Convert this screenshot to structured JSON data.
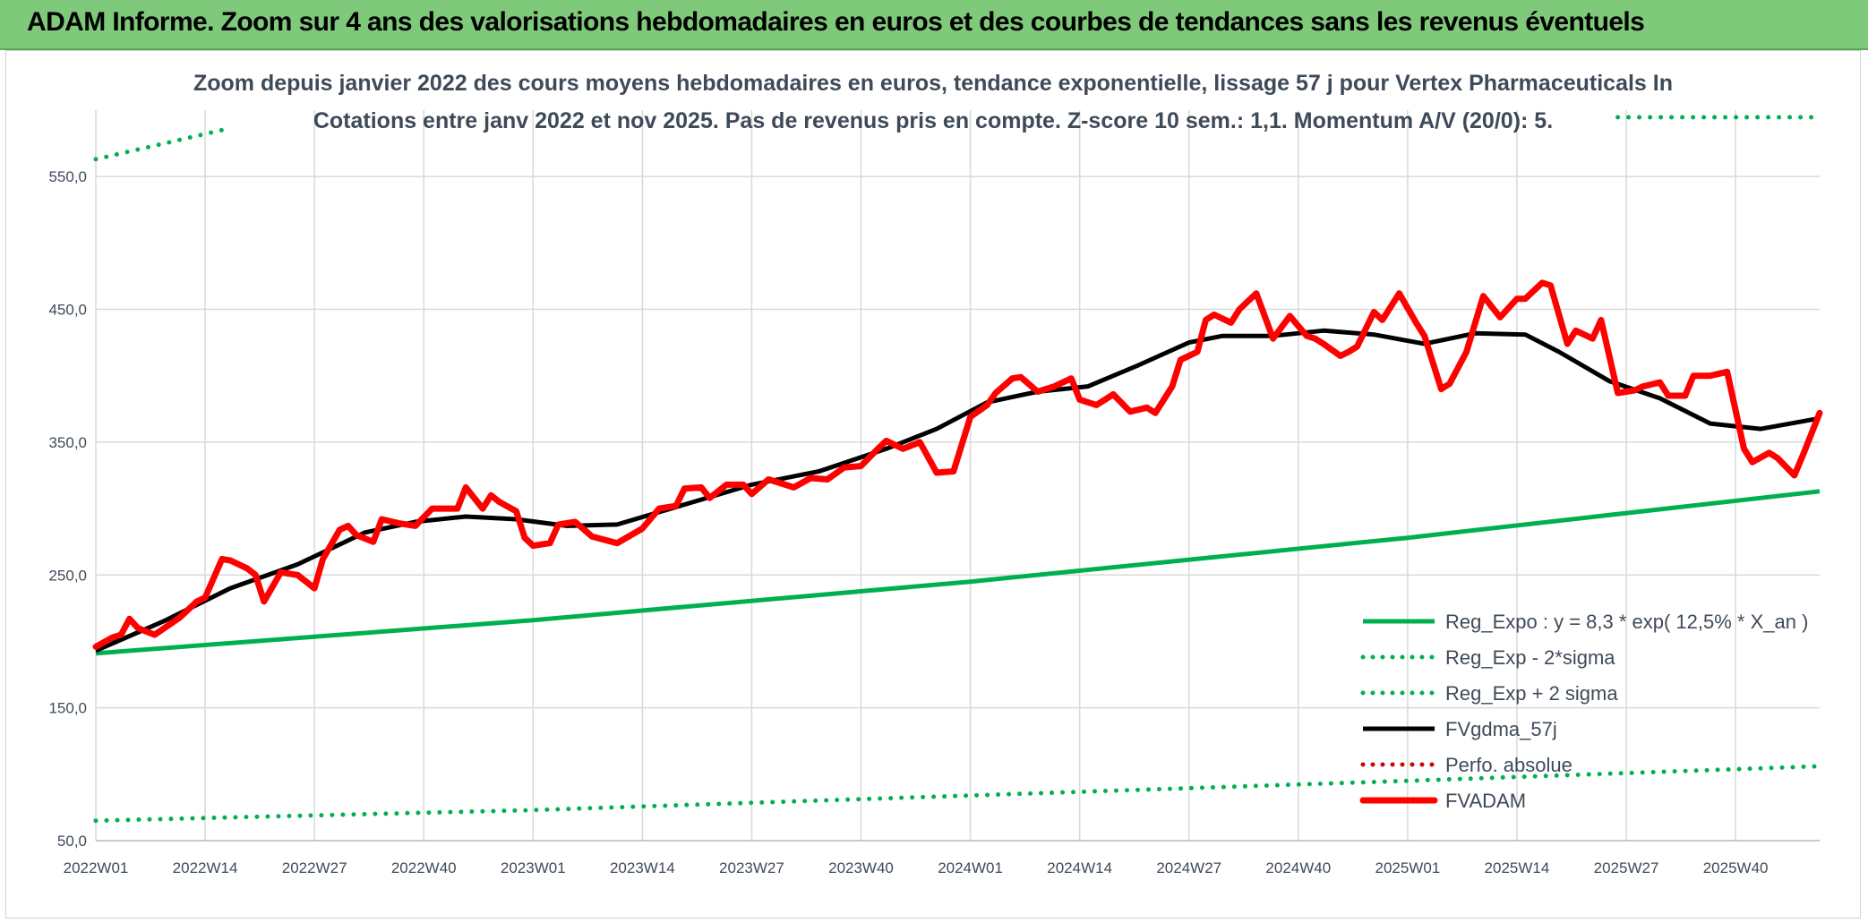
{
  "header": {
    "title": "ADAM Informe. Zoom sur 4 ans des valorisations hebdomadaires en euros et des courbes de tendances sans les revenus éventuels"
  },
  "colors": {
    "header_bg": "#7fc97a",
    "regression": "#00b050",
    "fvgdma": "#000000",
    "perfo": "#d00000",
    "fvadam": "#ff0000",
    "grid": "#d9d9d9"
  },
  "chart_data": {
    "type": "line",
    "title": "Zoom depuis janvier 2022 des cours moyens hebdomadaires en euros, tendance exponentielle, lissage 57 j pour Vertex Pharmaceuticals In",
    "subtitle": "Cotations entre janv 2022 et nov 2025. Pas de revenus pris en compte. Z-score 10 sem.: 1,1. Momentum A/V (20/0): 5.",
    "xlabel": "",
    "ylabel": "",
    "ylim": [
      50,
      600
    ],
    "yticks": [
      "550,0",
      "450,0",
      "350,0",
      "250,0",
      "150,0",
      "50,0"
    ],
    "ytick_values": [
      550,
      450,
      350,
      250,
      150,
      50
    ],
    "x_tick_labels": [
      "2022W01",
      "2022W14",
      "2022W27",
      "2022W40",
      "2023W01",
      "2023W14",
      "2023W27",
      "2023W40",
      "2024W01",
      "2024W14",
      "2024W27",
      "2024W40",
      "2025W01",
      "2025W14",
      "2025W27",
      "2025W40"
    ],
    "x_tick_index": [
      0,
      13,
      26,
      39,
      52,
      65,
      78,
      91,
      104,
      117,
      130,
      143,
      156,
      169,
      182,
      195
    ],
    "n_weeks": 206,
    "grid": true,
    "legend_position": "bottom-right",
    "series": [
      {
        "name": "Reg_Expo : y = 8,3 * exp( 12,5% *  X_an )",
        "style": "solid",
        "color": "#00b050",
        "x": [
          0,
          52,
          104,
          156,
          205
        ],
        "values": [
          191,
          216,
          245,
          278,
          313
        ]
      },
      {
        "name": "Reg_Exp - 2*sigma",
        "style": "dotted",
        "color": "#00b050",
        "x": [
          0,
          52,
          104,
          156,
          205
        ],
        "values": [
          65,
          73,
          84,
          95,
          106
        ]
      },
      {
        "name": "Reg_Exp + 2 sigma",
        "style": "dotted",
        "color": "#00b050",
        "x": [
          0,
          15
        ],
        "values": [
          563,
          585
        ],
        "x_b": [
          181,
          205
        ],
        "values_b": [
          600,
          600
        ]
      },
      {
        "name": "FVgdma_57j",
        "style": "solid",
        "color": "#000000",
        "x": [
          0,
          8,
          16,
          24,
          32,
          38,
          44,
          50,
          56,
          62,
          70,
          78,
          86,
          94,
          100,
          106,
          112,
          118,
          124,
          130,
          134,
          140,
          146,
          152,
          158,
          164,
          170,
          174,
          180,
          186,
          192,
          198,
          205
        ],
        "values": [
          193,
          215,
          240,
          258,
          282,
          290,
          294,
          292,
          287,
          288,
          303,
          318,
          328,
          345,
          360,
          380,
          388,
          392,
          408,
          425,
          430,
          430,
          434,
          431,
          424,
          432,
          431,
          418,
          396,
          383,
          364,
          360,
          368
        ]
      },
      {
        "name": "Perfo. absolue",
        "style": "dotted",
        "color": "#d00000",
        "x": [],
        "values": []
      },
      {
        "name": "FVADAM",
        "style": "solid-thick",
        "color": "#ff0000",
        "x": [
          0,
          2,
          3,
          4,
          5,
          7,
          10,
          12,
          13,
          15,
          16,
          18,
          19,
          20,
          22,
          23,
          24,
          26,
          27,
          29,
          30,
          31,
          33,
          34,
          36,
          38,
          40,
          43,
          44,
          46,
          47,
          48,
          50,
          51,
          52,
          54,
          55,
          57,
          59,
          62,
          65,
          67,
          69,
          70,
          72,
          73,
          75,
          77,
          78,
          80,
          83,
          85,
          87,
          89,
          91,
          93,
          94,
          96,
          98,
          100,
          102,
          104,
          106,
          107,
          109,
          110,
          112,
          114,
          116,
          117,
          119,
          121,
          123,
          125,
          126,
          128,
          129,
          131,
          132,
          133,
          135,
          136,
          138,
          140,
          142,
          144,
          145,
          146,
          148,
          149,
          150,
          152,
          153,
          155,
          157,
          158,
          160,
          161,
          163,
          165,
          167,
          169,
          170,
          172,
          173,
          175,
          176,
          178,
          179,
          181,
          183,
          184,
          186,
          187,
          189,
          190,
          192,
          194,
          196,
          197,
          199,
          200,
          202,
          203,
          205
        ],
        "values": [
          196,
          203,
          205,
          217,
          210,
          205,
          218,
          230,
          233,
          262,
          261,
          255,
          250,
          230,
          252,
          251,
          250,
          240,
          262,
          284,
          287,
          280,
          275,
          292,
          289,
          287,
          300,
          300,
          316,
          300,
          310,
          305,
          298,
          278,
          272,
          274,
          288,
          290,
          279,
          274,
          285,
          300,
          302,
          315,
          316,
          308,
          318,
          318,
          311,
          322,
          316,
          323,
          322,
          331,
          332,
          345,
          351,
          345,
          350,
          327,
          328,
          369,
          378,
          387,
          398,
          399,
          388,
          392,
          398,
          382,
          378,
          386,
          373,
          376,
          372,
          392,
          412,
          418,
          442,
          446,
          440,
          450,
          462,
          428,
          445,
          430,
          428,
          424,
          415,
          418,
          422,
          448,
          442,
          462,
          440,
          430,
          390,
          394,
          418,
          460,
          444,
          458,
          458,
          470,
          468,
          424,
          434,
          428,
          442,
          387,
          389,
          392,
          395,
          385,
          385,
          400,
          400,
          403,
          345,
          335,
          342,
          338,
          325,
          340,
          372
        ]
      }
    ]
  }
}
